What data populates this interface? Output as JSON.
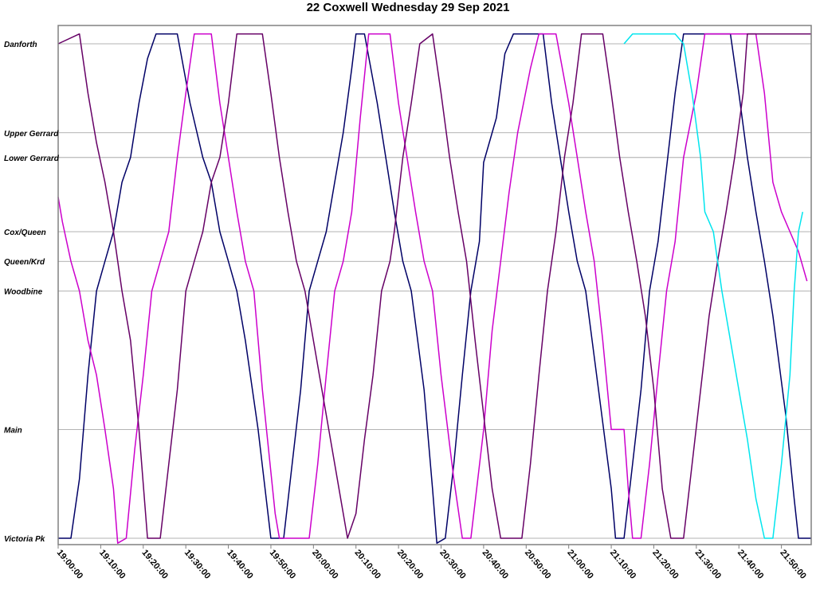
{
  "chart_data": {
    "type": "line",
    "title": "22 Coxwell Wednesday 29 Sep 2021",
    "xlabel": "",
    "ylabel": "",
    "xlim": [
      "19:00:00",
      "21:57:00"
    ],
    "x_ticks": [
      "19:00:00",
      "19:10:00",
      "19:20:00",
      "19:30:00",
      "19:40:00",
      "19:50:00",
      "20:00:00",
      "20:10:00",
      "20:20:00",
      "20:30:00",
      "20:40:00",
      "20:50:00",
      "21:00:00",
      "21:10:00",
      "21:20:00",
      "21:30:00",
      "21:40:00",
      "21:50:00"
    ],
    "stops": [
      {
        "name": "Danforth",
        "value": 100
      },
      {
        "name": "Upper Gerrard",
        "value": 82
      },
      {
        "name": "Lower Gerrard",
        "value": 77
      },
      {
        "name": "Cox/Queen",
        "value": 62
      },
      {
        "name": "Queen/Krd",
        "value": 56
      },
      {
        "name": "Woodbine",
        "value": 50
      },
      {
        "name": "Main",
        "value": 22
      },
      {
        "name": "Victoria Pk",
        "value": 0
      }
    ],
    "grid": true,
    "legend": "none",
    "series": [
      {
        "color": "#000066",
        "points": [
          [
            "19:00:00",
            0
          ],
          [
            "19:03:00",
            0
          ],
          [
            "19:05:00",
            12
          ],
          [
            "19:07:00",
            33
          ],
          [
            "19:09:00",
            50
          ],
          [
            "19:11:00",
            56
          ],
          [
            "19:13:00",
            62
          ],
          [
            "19:15:00",
            72
          ],
          [
            "19:17:00",
            77
          ],
          [
            "19:19:00",
            88
          ],
          [
            "19:21:00",
            97
          ],
          [
            "19:23:00",
            102
          ],
          [
            "19:28:00",
            102
          ],
          [
            "19:31:00",
            88
          ],
          [
            "19:34:00",
            77
          ],
          [
            "19:36:00",
            72
          ],
          [
            "19:38:00",
            62
          ],
          [
            "19:40:00",
            56
          ],
          [
            "19:42:00",
            50
          ],
          [
            "19:44:00",
            40
          ],
          [
            "19:47:00",
            22
          ],
          [
            "19:50:00",
            0
          ],
          [
            "19:53:00",
            0
          ],
          [
            "19:55:00",
            15
          ],
          [
            "19:57:00",
            30
          ],
          [
            "19:59:00",
            50
          ],
          [
            "20:01:00",
            56
          ],
          [
            "20:03:00",
            62
          ],
          [
            "20:05:00",
            72
          ],
          [
            "20:07:00",
            82
          ],
          [
            "20:09:00",
            95
          ],
          [
            "20:10:00",
            102
          ],
          [
            "20:12:00",
            102
          ],
          [
            "20:15:00",
            88
          ],
          [
            "20:17:00",
            77
          ],
          [
            "20:19:00",
            66
          ],
          [
            "20:21:00",
            56
          ],
          [
            "20:23:00",
            50
          ],
          [
            "20:26:00",
            30
          ],
          [
            "20:28:00",
            10
          ],
          [
            "20:29:00",
            -1
          ],
          [
            "20:31:00",
            0
          ],
          [
            "20:33:00",
            15
          ],
          [
            "20:35:00",
            33
          ],
          [
            "20:37:00",
            50
          ],
          [
            "20:39:00",
            60
          ],
          [
            "20:40:00",
            76
          ],
          [
            "20:43:00",
            85
          ],
          [
            "20:45:00",
            98
          ],
          [
            "20:47:00",
            102
          ],
          [
            "20:54:00",
            102
          ],
          [
            "20:56:00",
            88
          ],
          [
            "20:58:00",
            77
          ],
          [
            "21:00:00",
            66
          ],
          [
            "21:02:00",
            56
          ],
          [
            "21:04:00",
            50
          ],
          [
            "21:07:00",
            30
          ],
          [
            "21:10:00",
            10
          ],
          [
            "21:11:00",
            0
          ],
          [
            "21:13:00",
            0
          ],
          [
            "21:15:00",
            15
          ],
          [
            "21:17:00",
            30
          ],
          [
            "21:19:00",
            50
          ],
          [
            "21:21:00",
            60
          ],
          [
            "21:23:00",
            75
          ],
          [
            "21:25:00",
            90
          ],
          [
            "21:27:00",
            102
          ],
          [
            "21:38:00",
            102
          ],
          [
            "21:40:00",
            90
          ],
          [
            "21:42:00",
            77
          ],
          [
            "21:44:00",
            66
          ],
          [
            "21:46:00",
            56
          ],
          [
            "21:48:00",
            45
          ],
          [
            "21:51:00",
            25
          ],
          [
            "21:53:00",
            8
          ],
          [
            "21:54:00",
            0
          ],
          [
            "21:57:00",
            0
          ]
        ]
      },
      {
        "color": "#cc00cc",
        "points": [
          [
            "19:00:00",
            69
          ],
          [
            "19:01:00",
            64
          ],
          [
            "19:03:00",
            56
          ],
          [
            "19:05:00",
            50
          ],
          [
            "19:07:00",
            40
          ],
          [
            "19:09:00",
            33
          ],
          [
            "19:11:00",
            22
          ],
          [
            "19:13:00",
            10
          ],
          [
            "19:14:00",
            -1
          ],
          [
            "19:16:00",
            0
          ],
          [
            "19:18:00",
            18
          ],
          [
            "19:20:00",
            33
          ],
          [
            "19:22:00",
            50
          ],
          [
            "19:24:00",
            56
          ],
          [
            "19:26:00",
            62
          ],
          [
            "19:28:00",
            77
          ],
          [
            "19:30:00",
            90
          ],
          [
            "19:32:00",
            102
          ],
          [
            "19:36:00",
            102
          ],
          [
            "19:38:00",
            88
          ],
          [
            "19:40:00",
            77
          ],
          [
            "19:42:00",
            66
          ],
          [
            "19:44:00",
            56
          ],
          [
            "19:46:00",
            50
          ],
          [
            "19:48:00",
            30
          ],
          [
            "19:51:00",
            5
          ],
          [
            "19:52:00",
            0
          ],
          [
            "19:55:00",
            0
          ],
          [
            "19:59:00",
            0
          ],
          [
            "20:01:00",
            15
          ],
          [
            "20:03:00",
            33
          ],
          [
            "20:05:00",
            50
          ],
          [
            "20:07:00",
            56
          ],
          [
            "20:09:00",
            66
          ],
          [
            "20:11:00",
            85
          ],
          [
            "20:13:00",
            102
          ],
          [
            "20:18:00",
            102
          ],
          [
            "20:20:00",
            88
          ],
          [
            "20:22:00",
            77
          ],
          [
            "20:24:00",
            66
          ],
          [
            "20:26:00",
            56
          ],
          [
            "20:28:00",
            50
          ],
          [
            "20:30:00",
            33
          ],
          [
            "20:33:00",
            12
          ],
          [
            "20:35:00",
            0
          ],
          [
            "20:37:00",
            0
          ],
          [
            "20:40:00",
            22
          ],
          [
            "20:42:00",
            42
          ],
          [
            "20:44:00",
            56
          ],
          [
            "20:46:00",
            70
          ],
          [
            "20:48:00",
            82
          ],
          [
            "20:51:00",
            95
          ],
          [
            "20:53:00",
            102
          ],
          [
            "20:57:00",
            102
          ],
          [
            "21:00:00",
            88
          ],
          [
            "21:02:00",
            77
          ],
          [
            "21:04:00",
            66
          ],
          [
            "21:06:00",
            56
          ],
          [
            "21:08:00",
            40
          ],
          [
            "21:10:00",
            22
          ],
          [
            "21:13:00",
            22
          ],
          [
            "21:14:00",
            10
          ],
          [
            "21:15:00",
            0
          ],
          [
            "21:17:00",
            0
          ],
          [
            "21:19:00",
            15
          ],
          [
            "21:21:00",
            33
          ],
          [
            "21:23:00",
            50
          ],
          [
            "21:25:00",
            60
          ],
          [
            "21:27:00",
            77
          ],
          [
            "21:30:00",
            90
          ],
          [
            "21:32:00",
            102
          ],
          [
            "21:44:00",
            102
          ],
          [
            "21:46:00",
            90
          ],
          [
            "21:48:00",
            72
          ],
          [
            "21:50:00",
            66
          ],
          [
            "21:52:00",
            62
          ],
          [
            "21:54:00",
            58
          ],
          [
            "21:56:00",
            52
          ]
        ]
      },
      {
        "color": "#660066",
        "points": [
          [
            "19:00:00",
            100
          ],
          [
            "19:05:00",
            102
          ],
          [
            "19:07:00",
            90
          ],
          [
            "19:09:00",
            80
          ],
          [
            "19:11:00",
            72
          ],
          [
            "19:13:00",
            62
          ],
          [
            "19:15:00",
            50
          ],
          [
            "19:17:00",
            40
          ],
          [
            "19:19:00",
            22
          ],
          [
            "19:21:00",
            0
          ],
          [
            "19:24:00",
            0
          ],
          [
            "19:26:00",
            15
          ],
          [
            "19:28:00",
            30
          ],
          [
            "19:30:00",
            50
          ],
          [
            "19:32:00",
            56
          ],
          [
            "19:34:00",
            62
          ],
          [
            "19:36:00",
            72
          ],
          [
            "19:38:00",
            77
          ],
          [
            "19:40:00",
            88
          ],
          [
            "19:42:00",
            102
          ],
          [
            "19:48:00",
            102
          ],
          [
            "19:50:00",
            90
          ],
          [
            "19:52:00",
            77
          ],
          [
            "19:54:00",
            66
          ],
          [
            "19:56:00",
            56
          ],
          [
            "19:58:00",
            50
          ],
          [
            "20:00:00",
            40
          ],
          [
            "20:02:00",
            30
          ],
          [
            "20:04:00",
            20
          ],
          [
            "20:06:00",
            10
          ],
          [
            "20:08:00",
            0
          ],
          [
            "20:10:00",
            5
          ],
          [
            "20:12:00",
            20
          ],
          [
            "20:14:00",
            33
          ],
          [
            "20:16:00",
            50
          ],
          [
            "20:18:00",
            56
          ],
          [
            "20:19:00",
            62
          ],
          [
            "20:21:00",
            77
          ],
          [
            "20:23:00",
            88
          ],
          [
            "20:25:00",
            100
          ],
          [
            "20:28:00",
            102
          ],
          [
            "20:30:00",
            90
          ],
          [
            "20:32:00",
            77
          ],
          [
            "20:34:00",
            66
          ],
          [
            "20:36:00",
            56
          ],
          [
            "20:38:00",
            40
          ],
          [
            "20:40:00",
            25
          ],
          [
            "20:42:00",
            10
          ],
          [
            "20:44:00",
            0
          ],
          [
            "20:49:00",
            0
          ],
          [
            "20:51:00",
            15
          ],
          [
            "20:53:00",
            33
          ],
          [
            "20:55:00",
            50
          ],
          [
            "20:57:00",
            62
          ],
          [
            "20:59:00",
            77
          ],
          [
            "21:01:00",
            88
          ],
          [
            "21:03:00",
            102
          ],
          [
            "21:08:00",
            102
          ],
          [
            "21:10:00",
            90
          ],
          [
            "21:12:00",
            77
          ],
          [
            "21:14:00",
            66
          ],
          [
            "21:16:00",
            56
          ],
          [
            "21:18:00",
            45
          ],
          [
            "21:20:00",
            30
          ],
          [
            "21:22:00",
            10
          ],
          [
            "21:24:00",
            0
          ],
          [
            "21:27:00",
            0
          ],
          [
            "21:29:00",
            15
          ],
          [
            "21:31:00",
            30
          ],
          [
            "21:33:00",
            45
          ],
          [
            "21:35:00",
            56
          ],
          [
            "21:37:00",
            66
          ],
          [
            "21:39:00",
            77
          ],
          [
            "21:41:00",
            90
          ],
          [
            "21:42:00",
            102
          ],
          [
            "21:57:00",
            102
          ]
        ]
      },
      {
        "color": "#00e5ee",
        "points": [
          [
            "21:13:00",
            100
          ],
          [
            "21:15:00",
            102
          ],
          [
            "21:25:00",
            102
          ],
          [
            "21:27:00",
            100
          ],
          [
            "21:29:00",
            90
          ],
          [
            "21:31:00",
            77
          ],
          [
            "21:32:00",
            66
          ],
          [
            "21:34:00",
            62
          ],
          [
            "21:36:00",
            50
          ],
          [
            "21:38:00",
            40
          ],
          [
            "21:40:00",
            30
          ],
          [
            "21:42:00",
            20
          ],
          [
            "21:44:00",
            8
          ],
          [
            "21:46:00",
            0
          ],
          [
            "21:48:00",
            0
          ],
          [
            "21:50:00",
            15
          ],
          [
            "21:52:00",
            33
          ],
          [
            "21:53:00",
            50
          ],
          [
            "21:54:00",
            62
          ],
          [
            "21:55:00",
            66
          ]
        ]
      }
    ]
  }
}
